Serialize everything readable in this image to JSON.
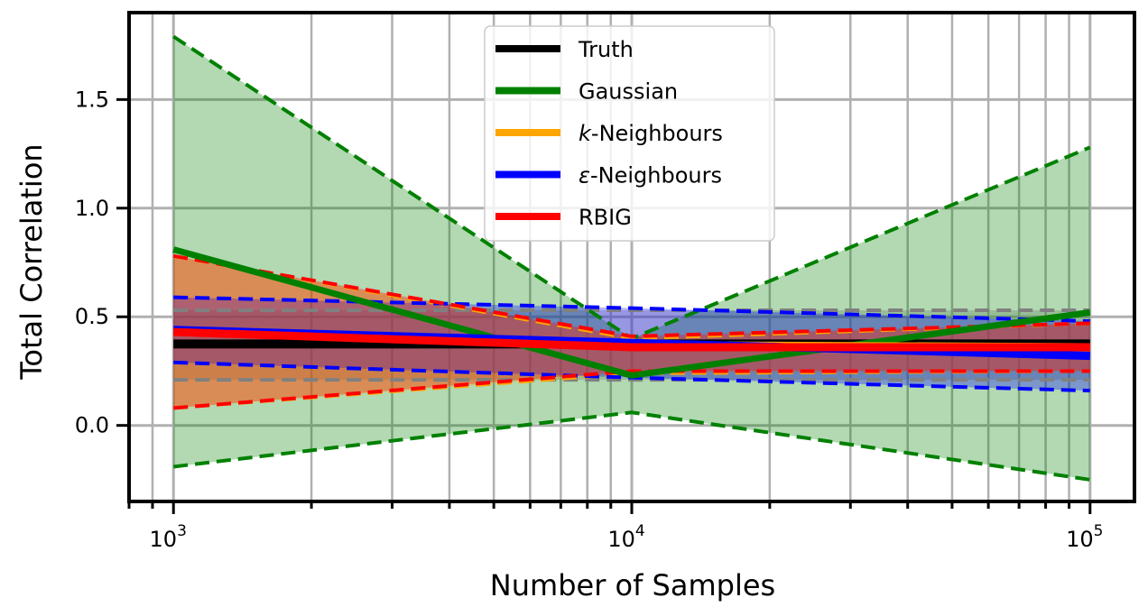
{
  "chart_data": {
    "type": "line",
    "xscale": "log",
    "xlim": [
      800,
      125000
    ],
    "ylim": [
      -0.35,
      1.9
    ],
    "x": [
      1000,
      10000,
      100000
    ],
    "xticks": [
      {
        "value": 1000,
        "base": "10",
        "exp": "3"
      },
      {
        "value": 10000,
        "base": "10",
        "exp": "4"
      },
      {
        "value": 100000,
        "base": "10",
        "exp": "5"
      }
    ],
    "yticks": [
      {
        "value": 0.0,
        "label": "0.0"
      },
      {
        "value": 0.5,
        "label": "0.5"
      },
      {
        "value": 1.0,
        "label": "1.0"
      },
      {
        "value": 1.5,
        "label": "1.5"
      }
    ],
    "xlabel": "Number of Samples",
    "ylabel": "Total Correlation",
    "grid": true,
    "legend_position": "top-center",
    "series": [
      {
        "name": "Truth",
        "color": "#000000",
        "values": [
          0.375,
          0.375,
          0.375
        ],
        "lower": [
          0.21,
          0.21,
          0.21
        ],
        "upper": [
          0.53,
          0.53,
          0.53
        ],
        "band_color": "#808080"
      },
      {
        "name": "Gaussian",
        "color": "#008000",
        "values": [
          0.81,
          0.23,
          0.52
        ],
        "lower": [
          -0.19,
          0.06,
          -0.25
        ],
        "upper": [
          1.79,
          0.4,
          1.28
        ],
        "band_color": "#008000"
      },
      {
        "name_prefix": "k",
        "name_suffix": "-Neighbours",
        "color": "#FFA500",
        "values": [
          0.43,
          0.37,
          0.36
        ],
        "lower": [
          0.08,
          0.24,
          0.25
        ],
        "upper": [
          0.78,
          0.4,
          0.47
        ],
        "band_color": "#FFA500"
      },
      {
        "name_prefix": "ε",
        "name_suffix": "-Neighbours",
        "color": "#0000FF",
        "values": [
          0.44,
          0.38,
          0.32
        ],
        "lower": [
          0.29,
          0.22,
          0.16
        ],
        "upper": [
          0.59,
          0.54,
          0.48
        ],
        "band_color": "#0000FF"
      },
      {
        "name": "RBIG",
        "color": "#FF0000",
        "values": [
          0.43,
          0.36,
          0.36
        ],
        "lower": [
          0.08,
          0.25,
          0.25
        ],
        "upper": [
          0.78,
          0.41,
          0.47
        ],
        "band_color": "#FF0000"
      }
    ]
  }
}
